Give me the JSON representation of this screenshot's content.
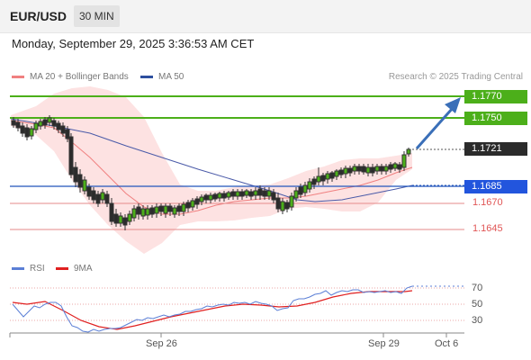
{
  "header": {
    "pair": "EUR/USD",
    "timeframe": "30 MIN"
  },
  "datetime": "Monday, September 29, 2025 3:36:53 AM CET",
  "legend": {
    "ma20_label": "MA 20 + Bollinger Bands",
    "ma50_label": "MA 50",
    "credit": "Research © 2025 Trading Central"
  },
  "levels": {
    "r2": "1.1770",
    "r1": "1.1750",
    "last": "1.1721",
    "pivot": "1.1685",
    "s1": "1.1670",
    "s2": "1.1645"
  },
  "rsi": {
    "rsi_label": "RSI",
    "ma_label": "9MA",
    "ticks": [
      "70",
      "50",
      "30"
    ]
  },
  "xaxis": [
    "Sep 26",
    "Sep 29",
    "Oct 6"
  ],
  "colors": {
    "green": "#4caf1a",
    "blue": "#2255bb",
    "red": "#e05555",
    "dark": "#2b2b2b",
    "bollinger": "#fde2e2",
    "ma20": "#f08080",
    "ma50": "#4a5aa8",
    "arrow": "#3a6fb8"
  }
}
